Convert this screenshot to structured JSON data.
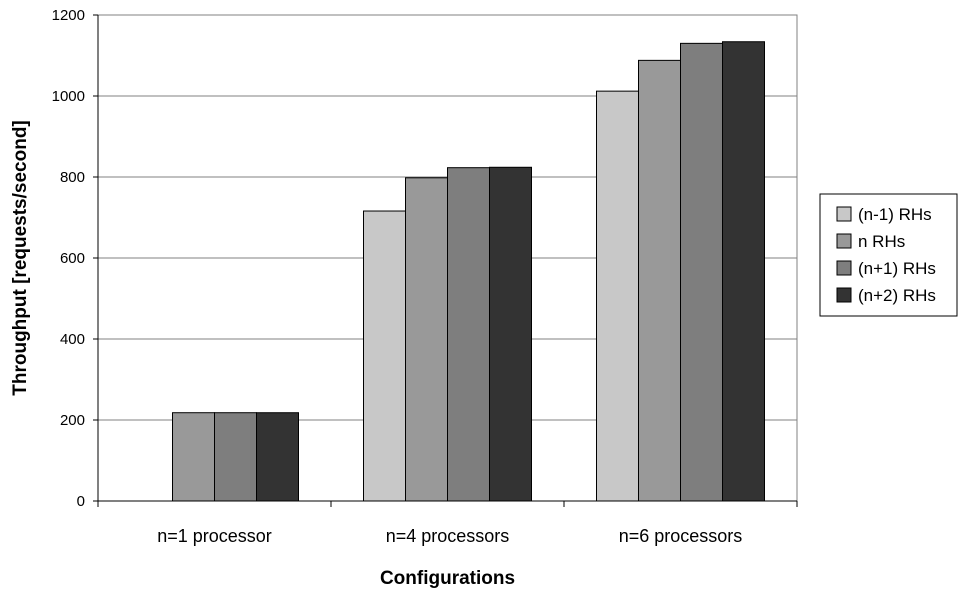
{
  "chart_data": {
    "type": "bar",
    "title": "",
    "xlabel": "Configurations",
    "ylabel": "Throughput [requests/second]",
    "ylim": [
      0,
      1200
    ],
    "yticks": [
      0,
      200,
      400,
      600,
      800,
      1000,
      1200
    ],
    "grid": true,
    "legend_position": "right",
    "categories": [
      "n=1 processor",
      "n=4 processors",
      "n=6 processors"
    ],
    "series": [
      {
        "name": "(n-1) RHs",
        "color": "#c8c8c8",
        "values": [
          0,
          716,
          1012
        ]
      },
      {
        "name": "n RHs",
        "color": "#999999",
        "values": [
          218,
          798,
          1088
        ]
      },
      {
        "name": "(n+1) RHs",
        "color": "#7e7e7e",
        "values": [
          218,
          823,
          1130
        ]
      },
      {
        "name": "(n+2) RHs",
        "color": "#333333",
        "values": [
          218,
          824,
          1134
        ]
      }
    ]
  }
}
